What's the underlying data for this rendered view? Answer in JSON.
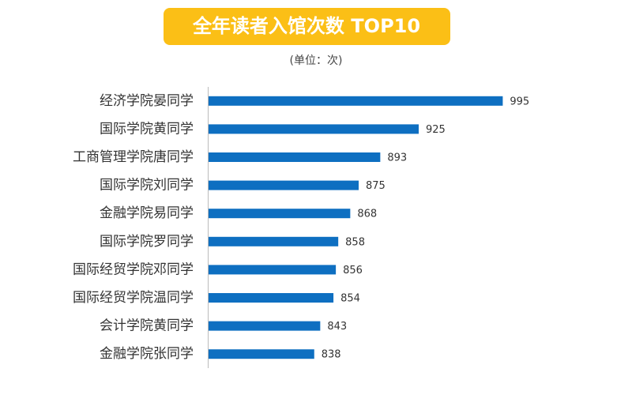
{
  "chart_data": {
    "type": "bar",
    "orientation": "horizontal",
    "title": "全年读者入馆次数 TOP10",
    "subtitle": "(单位：次)",
    "categories": [
      "经济学院晏同学",
      "国际学院黄同学",
      "工商管理学院唐同学",
      "国际学院刘同学",
      "金融学院易同学",
      "国际学院罗同学",
      "国际经贸学院邓同学",
      "国际经贸学院温同学",
      "会计学院黄同学",
      "金融学院张同学"
    ],
    "values": [
      995,
      925,
      893,
      875,
      868,
      858,
      856,
      854,
      843,
      838
    ],
    "color": "#0e6fc1",
    "xlim": [
      750,
      1000
    ]
  }
}
